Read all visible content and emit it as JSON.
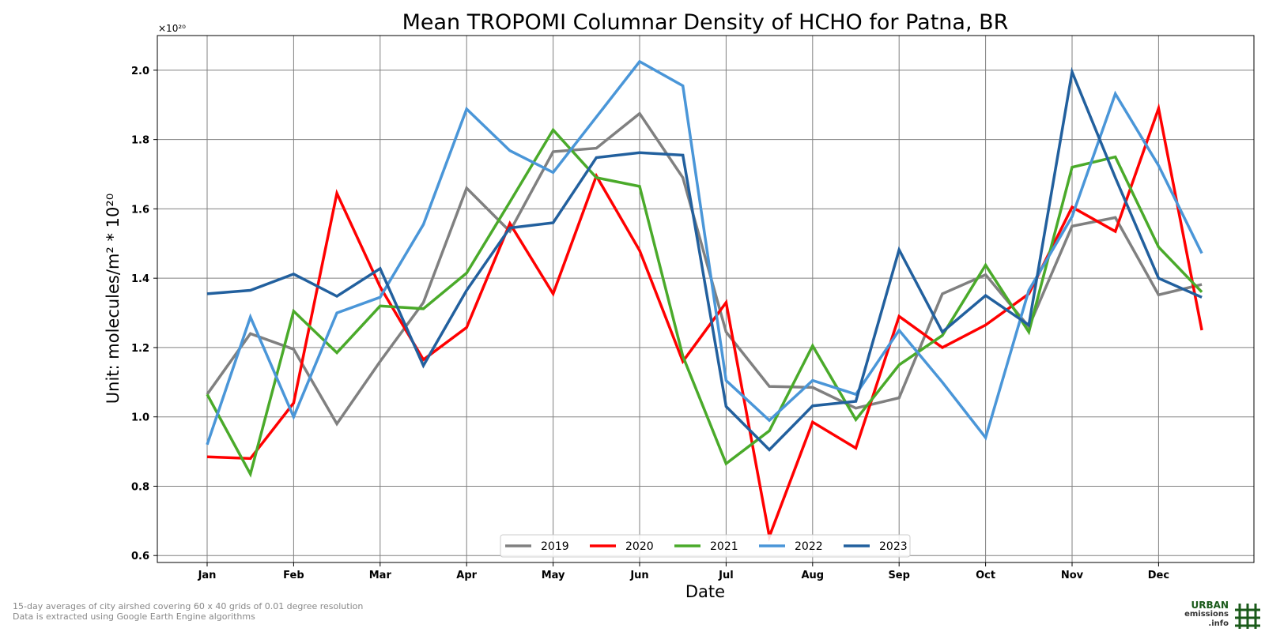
{
  "chart_data": {
    "type": "line",
    "title": "Mean TROPOMI Columnar Density of HCHO for Patna, BR",
    "xlabel": "Date",
    "ylabel": "Unit: molecules/m² * 10²⁰",
    "y_multiplier_label": "×10²⁰",
    "ylim": [
      0.58,
      2.1
    ],
    "yticks": [
      0.6,
      0.8,
      1.0,
      1.2,
      1.4,
      1.6,
      1.8,
      2.0
    ],
    "ytick_labels": [
      "0.6",
      "0.8",
      "1.0",
      "1.2",
      "1.4",
      "1.6",
      "1.8",
      "2.0"
    ],
    "x": [
      "Jan 1",
      "Jan 16",
      "Feb 1",
      "Feb 16",
      "Mar 1",
      "Mar 16",
      "Apr 1",
      "Apr 16",
      "May 1",
      "May 16",
      "Jun 1",
      "Jun 16",
      "Jul 1",
      "Jul 16",
      "Aug 1",
      "Aug 16",
      "Sep 1",
      "Sep 16",
      "Oct 1",
      "Oct 16",
      "Nov 1",
      "Nov 16",
      "Dec 1",
      "Dec 16"
    ],
    "month_ticks": [
      "Jan",
      "Feb",
      "Mar",
      "Apr",
      "May",
      "Jun",
      "Jul",
      "Aug",
      "Sep",
      "Oct",
      "Nov",
      "Dec"
    ],
    "grid": true,
    "legend_position": "bottom-center",
    "series": [
      {
        "name": "2019",
        "color": "#808080",
        "values": [
          1.065,
          1.24,
          1.195,
          0.98,
          1.16,
          1.33,
          1.66,
          1.535,
          1.765,
          1.775,
          1.875,
          1.69,
          1.245,
          1.088,
          1.085,
          1.025,
          1.055,
          1.355,
          1.41,
          1.26,
          1.55,
          1.575,
          1.352,
          1.382
        ]
      },
      {
        "name": "2020",
        "color": "#ff0000",
        "values": [
          0.885,
          0.88,
          1.04,
          1.645,
          1.375,
          1.165,
          1.258,
          1.558,
          1.355,
          1.695,
          1.48,
          1.16,
          1.33,
          0.655,
          0.985,
          0.91,
          1.29,
          1.2,
          1.265,
          1.355,
          1.605,
          1.535,
          1.89,
          1.25
        ]
      },
      {
        "name": "2021",
        "color": "#4aaa2a",
        "values": [
          1.065,
          0.835,
          1.305,
          1.185,
          1.32,
          1.312,
          1.415,
          1.62,
          1.828,
          1.69,
          1.665,
          1.175,
          0.865,
          0.96,
          1.205,
          0.992,
          1.15,
          1.235,
          1.438,
          1.245,
          1.72,
          1.75,
          1.49,
          1.36
        ]
      },
      {
        "name": "2022",
        "color": "#4a96d8",
        "values": [
          0.92,
          1.288,
          1.0,
          1.3,
          1.345,
          1.555,
          1.888,
          1.768,
          1.705,
          1.865,
          2.025,
          1.955,
          1.105,
          0.99,
          1.105,
          1.065,
          1.25,
          1.1,
          0.94,
          1.365,
          1.578,
          1.932,
          1.725,
          1.472
        ]
      },
      {
        "name": "2023",
        "color": "#22609e",
        "values": [
          1.355,
          1.365,
          1.412,
          1.348,
          1.428,
          1.148,
          1.365,
          1.545,
          1.56,
          1.748,
          1.762,
          1.755,
          1.03,
          0.905,
          1.032,
          1.045,
          1.482,
          1.245,
          1.35,
          1.265,
          1.995,
          1.69,
          1.4,
          1.345
        ]
      }
    ]
  },
  "footer": {
    "line1": "15-day averages of city airshed covering 60 x 40 grids of 0.01 degree resolution",
    "line2": "Data is extracted using Google Earth Engine algorithms"
  },
  "logo": {
    "line1": "URBAN",
    "line2": "emissions",
    "line3": ".info"
  }
}
